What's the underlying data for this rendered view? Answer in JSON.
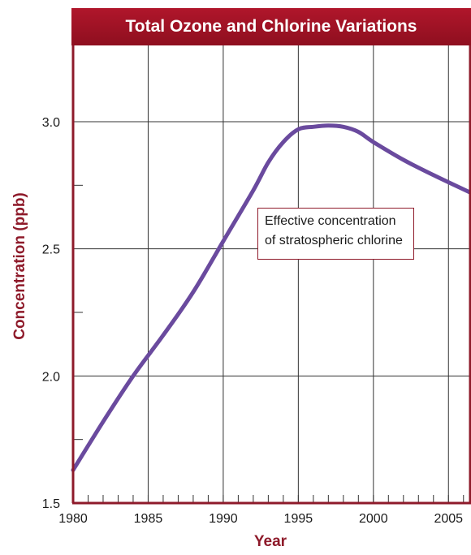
{
  "chart_data": {
    "type": "line",
    "title": "Total Ozone and Chlorine Variations",
    "xlabel": "Year",
    "ylabel": "Concentration (ppb)",
    "xlim": [
      1980,
      2006.5
    ],
    "ylim": [
      1.5,
      3.3
    ],
    "x_ticks": [
      1980,
      1985,
      1990,
      1995,
      2000,
      2005
    ],
    "y_ticks": [
      1.5,
      2.0,
      2.5,
      3.0
    ],
    "grid": true,
    "annotation": [
      "Effective concentration",
      "of stratospheric chlorine"
    ],
    "series": [
      {
        "color": "#6a4a9e",
        "x": [
          1980,
          1982,
          1984,
          1986,
          1988,
          1990,
          1992,
          1993,
          1994,
          1995,
          1996,
          1997,
          1998,
          1999,
          2000,
          2002,
          2004,
          2006.5
        ],
        "y": [
          1.63,
          1.82,
          2.0,
          2.16,
          2.33,
          2.53,
          2.73,
          2.84,
          2.92,
          2.97,
          2.98,
          2.985,
          2.98,
          2.96,
          2.92,
          2.85,
          2.79,
          2.72
        ]
      }
    ]
  },
  "colors": {
    "title_band": "#a3142a",
    "axis_frame": "#8e1a2a",
    "grid": "#333333"
  }
}
